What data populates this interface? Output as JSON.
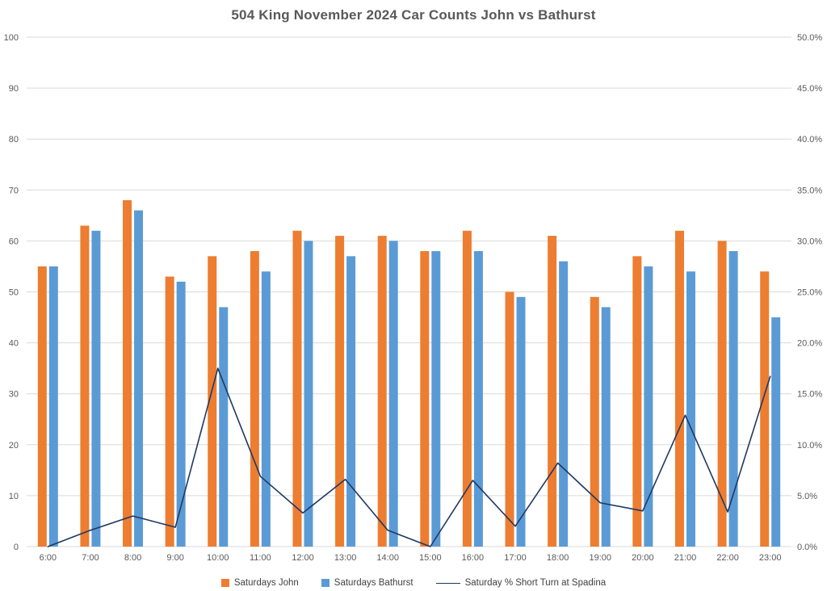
{
  "chart_data": {
    "type": "bar",
    "title": "504 King November 2024 Car Counts John vs Bathurst",
    "categories": [
      "6:00",
      "7:00",
      "8:00",
      "9:00",
      "10:00",
      "11:00",
      "12:00",
      "13:00",
      "14:00",
      "15:00",
      "16:00",
      "17:00",
      "18:00",
      "19:00",
      "20:00",
      "21:00",
      "22:00",
      "23:00"
    ],
    "series": [
      {
        "name": "Saturdays John",
        "type": "bar",
        "axis": "left",
        "color": "#ED7D31",
        "values": [
          55,
          63,
          68,
          53,
          57,
          58,
          62,
          61,
          61,
          58,
          62,
          50,
          61,
          49,
          57,
          62,
          60,
          54
        ]
      },
      {
        "name": "Saturdays Bathurst",
        "type": "bar",
        "axis": "left",
        "color": "#5B9BD5",
        "values": [
          55,
          62,
          66,
          52,
          47,
          54,
          60,
          57,
          60,
          58,
          58,
          49,
          56,
          47,
          55,
          54,
          58,
          45
        ]
      },
      {
        "name": "Saturday % Short Turn at Spadina",
        "type": "line",
        "axis": "right",
        "color": "#1F3864",
        "values": [
          0.0,
          1.6,
          3.0,
          1.9,
          17.5,
          6.9,
          3.3,
          6.6,
          1.6,
          0.0,
          6.5,
          2.0,
          8.2,
          4.3,
          3.5,
          12.9,
          3.4,
          16.7
        ]
      }
    ],
    "left_axis": {
      "min": 0,
      "max": 100,
      "step": 10,
      "ticks": [
        "0",
        "10",
        "20",
        "30",
        "40",
        "50",
        "60",
        "70",
        "80",
        "90",
        "100"
      ]
    },
    "right_axis": {
      "min": 0,
      "max": 50,
      "step": 5,
      "ticks": [
        "0.0%",
        "5.0%",
        "10.0%",
        "15.0%",
        "20.0%",
        "25.0%",
        "30.0%",
        "35.0%",
        "40.0%",
        "45.0%",
        "50.0%"
      ]
    },
    "grid": true,
    "legend_position": "bottom",
    "colors": {
      "background": "#FFFFFF",
      "gridline": "#D9D9D9",
      "axis_text": "#595959",
      "title_text": "#595959"
    }
  }
}
